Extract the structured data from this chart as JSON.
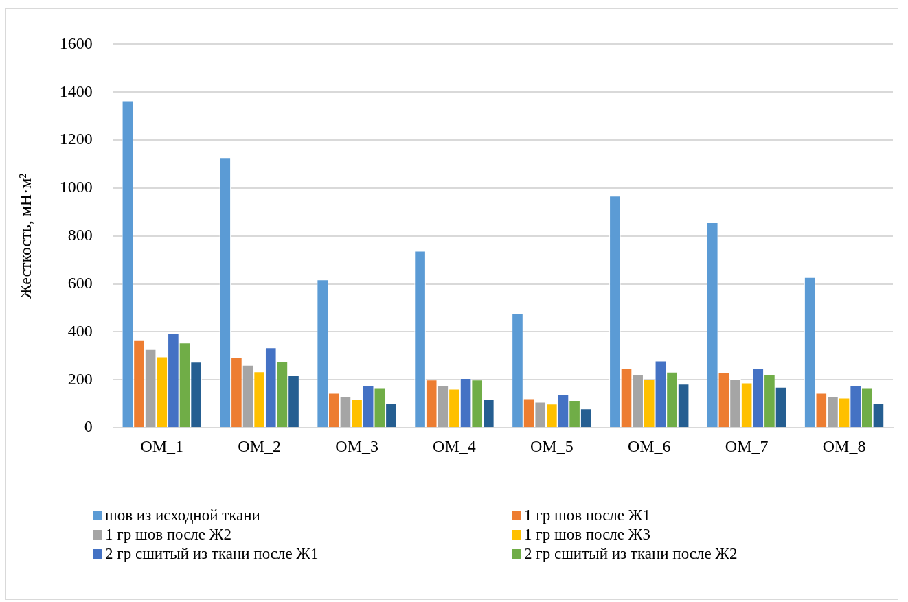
{
  "chart_data": {
    "type": "bar",
    "ylabel": "Жесткость, мН·м²",
    "categories": [
      "ОМ_1",
      "ОМ_2",
      "ОМ_3",
      "ОМ_4",
      "ОМ_5",
      "ОМ_6",
      "ОМ_7",
      "ОМ_8"
    ],
    "series": [
      {
        "name": "шов из исходной ткани",
        "color": "#5b9bd5",
        "values": [
          1365,
          1128,
          618,
          738,
          476,
          968,
          857,
          628
        ]
      },
      {
        "name": "1 гр шов после Ж1",
        "color": "#ed7d31",
        "values": [
          365,
          295,
          145,
          200,
          122,
          250,
          230,
          145
        ]
      },
      {
        "name": "1 гр шов после Ж2",
        "color": "#a5a5a5",
        "values": [
          328,
          262,
          132,
          176,
          108,
          223,
          204,
          131
        ]
      },
      {
        "name": "1 гр шов после Ж3",
        "color": "#ffc000",
        "values": [
          297,
          235,
          118,
          162,
          100,
          202,
          188,
          125
        ]
      },
      {
        "name": "2 гр сшитый из ткани после Ж1",
        "color": "#4472c4",
        "values": [
          395,
          335,
          175,
          207,
          138,
          280,
          248,
          177
        ]
      },
      {
        "name": "2 гр сшитый из ткани после Ж2",
        "color": "#70ad47",
        "values": [
          355,
          277,
          168,
          200,
          115,
          233,
          222,
          168
        ]
      },
      {
        "color": "#255e91",
        "values": [
          275,
          218,
          103,
          118,
          80,
          183,
          170,
          102
        ]
      }
    ],
    "ylim": [
      0,
      1600
    ],
    "yticks": [
      0,
      200,
      400,
      600,
      800,
      1000,
      1200,
      1400,
      1600
    ],
    "grid": "y",
    "legend": "bottom"
  }
}
